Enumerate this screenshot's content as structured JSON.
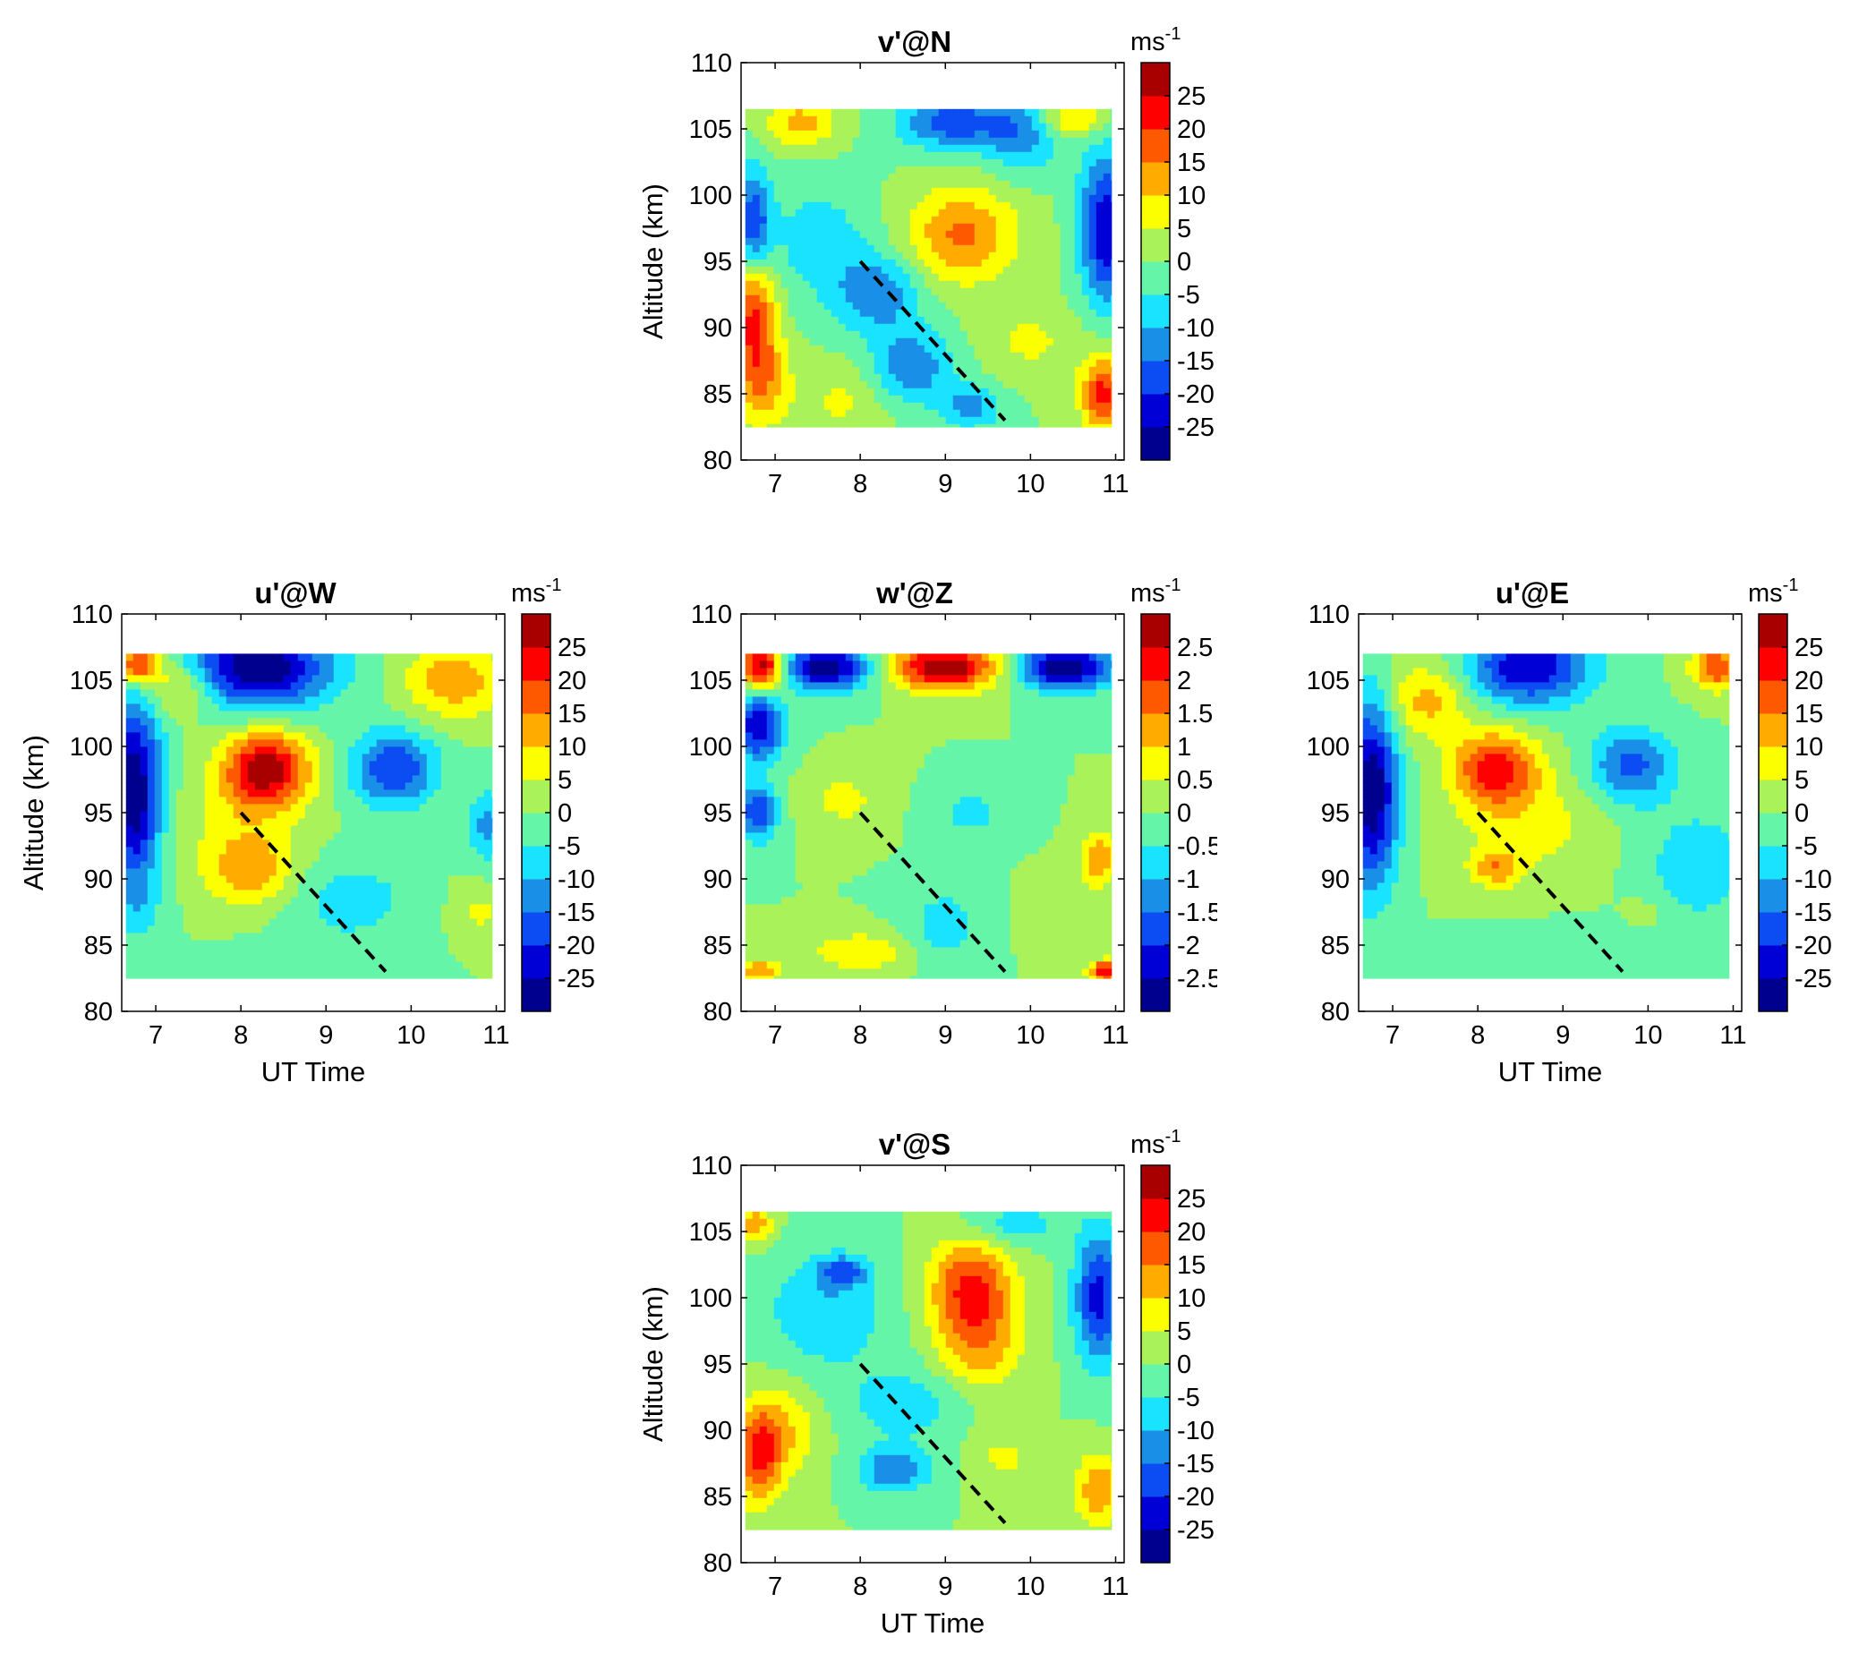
{
  "chart_data": [
    {
      "type": "heatmap",
      "id": "vN",
      "title": "v'@N",
      "xlabel": "",
      "ylabel": "Altitude (km)",
      "colorbar_unit": "ms",
      "colorbar_unit_exp": "-1",
      "xlim": [
        6.6,
        11.1
      ],
      "ylim": [
        80,
        110
      ],
      "xticks": [
        7,
        8,
        9,
        10,
        11
      ],
      "yticks": [
        80,
        85,
        90,
        95,
        100,
        105,
        110
      ],
      "data_x_range": [
        6.65,
        10.95
      ],
      "data_y_range": [
        82.5,
        106.5
      ],
      "colorbar_ticks": [
        "25",
        "20",
        "15",
        "10",
        "5",
        "0",
        "-5",
        "-10",
        "-15",
        "-20",
        "-25"
      ],
      "dashed_line": {
        "x": [
          8.0,
          9.7
        ],
        "y": [
          95,
          83
        ]
      },
      "features": [
        {
          "x": 6.75,
          "y": 97.5,
          "value": -22,
          "sx": 0.14,
          "sy": 3.0
        },
        {
          "x": 6.75,
          "y": 91.5,
          "value": 22,
          "sx": 0.18,
          "sy": 3.5
        },
        {
          "x": 6.85,
          "y": 86.0,
          "value": 12,
          "sx": 0.22,
          "sy": 2.5
        },
        {
          "x": 7.5,
          "y": 96.5,
          "value": -8,
          "sx": 0.45,
          "sy": 3.0
        },
        {
          "x": 7.3,
          "y": 105.5,
          "value": 12,
          "sx": 0.3,
          "sy": 1.3
        },
        {
          "x": 8.2,
          "y": 92.5,
          "value": -14,
          "sx": 0.35,
          "sy": 2.0
        },
        {
          "x": 8.6,
          "y": 87.0,
          "value": -14,
          "sx": 0.35,
          "sy": 2.0
        },
        {
          "x": 9.3,
          "y": 84.0,
          "value": -12,
          "sx": 0.25,
          "sy": 1.2
        },
        {
          "x": 9.1,
          "y": 105.5,
          "value": -18,
          "sx": 0.45,
          "sy": 1.5
        },
        {
          "x": 9.2,
          "y": 97.0,
          "value": 16,
          "sx": 0.45,
          "sy": 2.5
        },
        {
          "x": 9.9,
          "y": 104.5,
          "value": -12,
          "sx": 0.3,
          "sy": 2.0
        },
        {
          "x": 10.9,
          "y": 97.5,
          "value": -25,
          "sx": 0.22,
          "sy": 4.0
        },
        {
          "x": 10.5,
          "y": 105.8,
          "value": 12,
          "sx": 0.25,
          "sy": 1.0
        },
        {
          "x": 10.85,
          "y": 85.0,
          "value": 22,
          "sx": 0.18,
          "sy": 2.0
        },
        {
          "x": 10.0,
          "y": 89.0,
          "value": 6,
          "sx": 0.4,
          "sy": 2.0
        },
        {
          "x": 7.8,
          "y": 84.5,
          "value": 6,
          "sx": 0.4,
          "sy": 2.0
        }
      ]
    },
    {
      "type": "heatmap",
      "id": "uW",
      "title": "u'@W",
      "xlabel": "UT Time",
      "ylabel": "Altitude (km)",
      "colorbar_unit": "ms",
      "colorbar_unit_exp": "-1",
      "xlim": [
        6.6,
        11.1
      ],
      "ylim": [
        80,
        110
      ],
      "xticks": [
        7,
        8,
        9,
        10,
        11
      ],
      "yticks": [
        80,
        85,
        90,
        95,
        100,
        105,
        110
      ],
      "data_x_range": [
        6.65,
        10.95
      ],
      "data_y_range": [
        82.5,
        107
      ],
      "colorbar_ticks": [
        "25",
        "20",
        "15",
        "10",
        "5",
        "0",
        "-5",
        "-10",
        "-15",
        "-20",
        "-25"
      ],
      "dashed_line": {
        "x": [
          8.0,
          9.7
        ],
        "y": [
          95,
          83
        ]
      },
      "features": [
        {
          "x": 6.75,
          "y": 96.5,
          "value": -30,
          "sx": 0.22,
          "sy": 5.0
        },
        {
          "x": 6.8,
          "y": 106.2,
          "value": 25,
          "sx": 0.18,
          "sy": 1.0
        },
        {
          "x": 7.3,
          "y": 104.5,
          "value": 12,
          "sx": 0.3,
          "sy": 1.5
        },
        {
          "x": 8.2,
          "y": 106.0,
          "value": -30,
          "sx": 0.6,
          "sy": 2.2
        },
        {
          "x": 8.3,
          "y": 98.3,
          "value": 28,
          "sx": 0.35,
          "sy": 2.0
        },
        {
          "x": 8.0,
          "y": 94.0,
          "value": 6,
          "sx": 0.5,
          "sy": 3.0
        },
        {
          "x": 8.1,
          "y": 90.5,
          "value": 12,
          "sx": 0.35,
          "sy": 1.8
        },
        {
          "x": 9.8,
          "y": 98.3,
          "value": -20,
          "sx": 0.35,
          "sy": 2.0
        },
        {
          "x": 10.5,
          "y": 105.0,
          "value": 14,
          "sx": 0.4,
          "sy": 2.0
        },
        {
          "x": 10.9,
          "y": 94.0,
          "value": -12,
          "sx": 0.15,
          "sy": 2.0
        },
        {
          "x": 9.3,
          "y": 88.5,
          "value": -8,
          "sx": 0.5,
          "sy": 2.0
        },
        {
          "x": 10.8,
          "y": 87.5,
          "value": 6,
          "sx": 0.2,
          "sy": 1.5
        },
        {
          "x": 6.8,
          "y": 87.5,
          "value": -4,
          "sx": 0.2,
          "sy": 1.5
        },
        {
          "x": 9.0,
          "y": 84.0,
          "value": -3,
          "sx": 0.6,
          "sy": 1.5
        }
      ]
    },
    {
      "type": "heatmap",
      "id": "wZ",
      "title": "w'@Z",
      "xlabel": "",
      "ylabel": "",
      "colorbar_unit": "ms",
      "colorbar_unit_exp": "-1",
      "xlim": [
        6.6,
        11.1
      ],
      "ylim": [
        80,
        110
      ],
      "xticks": [
        7,
        8,
        9,
        10,
        11
      ],
      "yticks": [
        80,
        85,
        90,
        95,
        100,
        105,
        110
      ],
      "data_x_range": [
        6.65,
        10.95
      ],
      "data_y_range": [
        82.5,
        107
      ],
      "colorbar_ticks": [
        "2.5",
        "2",
        "1.5",
        "1",
        "0.5",
        "0",
        "-0.5",
        "-1",
        "-1.5",
        "-2",
        "-2.5"
      ],
      "dashed_line": {
        "x": [
          8.0,
          9.7
        ],
        "y": [
          95,
          83
        ]
      },
      "features": [
        {
          "x": 6.85,
          "y": 106.0,
          "value": 3,
          "sx": 0.18,
          "sy": 1.2
        },
        {
          "x": 7.6,
          "y": 106.0,
          "value": -3,
          "sx": 0.35,
          "sy": 1.2
        },
        {
          "x": 9.0,
          "y": 106.0,
          "value": 3,
          "sx": 0.45,
          "sy": 1.2
        },
        {
          "x": 10.4,
          "y": 106.0,
          "value": -3,
          "sx": 0.4,
          "sy": 1.2
        },
        {
          "x": 6.8,
          "y": 101.5,
          "value": -2.5,
          "sx": 0.2,
          "sy": 1.8
        },
        {
          "x": 6.8,
          "y": 95.0,
          "value": -2.0,
          "sx": 0.15,
          "sy": 1.5
        },
        {
          "x": 7.8,
          "y": 96.0,
          "value": 0.7,
          "sx": 0.3,
          "sy": 1.5
        },
        {
          "x": 9.3,
          "y": 95.0,
          "value": -0.7,
          "sx": 0.3,
          "sy": 1.2
        },
        {
          "x": 10.8,
          "y": 91.5,
          "value": 1.5,
          "sx": 0.15,
          "sy": 1.5
        },
        {
          "x": 9.0,
          "y": 86.5,
          "value": -0.8,
          "sx": 0.3,
          "sy": 2.0
        },
        {
          "x": 10.2,
          "y": 87.0,
          "value": 0.5,
          "sx": 0.2,
          "sy": 1.5
        },
        {
          "x": 8.0,
          "y": 84.5,
          "value": 1.0,
          "sx": 0.4,
          "sy": 1.0
        },
        {
          "x": 10.9,
          "y": 83.0,
          "value": 2.5,
          "sx": 0.15,
          "sy": 0.6
        },
        {
          "x": 6.8,
          "y": 83.0,
          "value": 1.5,
          "sx": 0.2,
          "sy": 0.6
        }
      ]
    },
    {
      "type": "heatmap",
      "id": "uE",
      "title": "u'@E",
      "xlabel": "UT Time",
      "ylabel": "",
      "colorbar_unit": "ms",
      "colorbar_unit_exp": "-1",
      "xlim": [
        6.6,
        11.1
      ],
      "ylim": [
        80,
        110
      ],
      "xticks": [
        7,
        8,
        9,
        10,
        11
      ],
      "yticks": [
        80,
        85,
        90,
        95,
        100,
        105,
        110
      ],
      "data_x_range": [
        6.65,
        10.95
      ],
      "data_y_range": [
        82.5,
        107
      ],
      "colorbar_ticks": [
        "25",
        "20",
        "15",
        "10",
        "5",
        "0",
        "-5",
        "-10",
        "-15",
        "-20",
        "-25"
      ],
      "dashed_line": {
        "x": [
          8.0,
          9.7
        ],
        "y": [
          95,
          83
        ]
      },
      "features": [
        {
          "x": 6.75,
          "y": 96.5,
          "value": -30,
          "sx": 0.22,
          "sy": 5.0
        },
        {
          "x": 7.4,
          "y": 103.5,
          "value": 12,
          "sx": 0.35,
          "sy": 2.0
        },
        {
          "x": 8.6,
          "y": 106.0,
          "value": -25,
          "sx": 0.5,
          "sy": 2.0
        },
        {
          "x": 8.2,
          "y": 98.3,
          "value": 22,
          "sx": 0.35,
          "sy": 2.0
        },
        {
          "x": 8.6,
          "y": 94.0,
          "value": 7,
          "sx": 0.6,
          "sy": 3.0
        },
        {
          "x": 8.2,
          "y": 90.8,
          "value": 12,
          "sx": 0.2,
          "sy": 1.0
        },
        {
          "x": 9.8,
          "y": 98.5,
          "value": -17,
          "sx": 0.35,
          "sy": 2.0
        },
        {
          "x": 10.8,
          "y": 106.0,
          "value": 20,
          "sx": 0.2,
          "sy": 1.2
        },
        {
          "x": 10.6,
          "y": 91.0,
          "value": -9,
          "sx": 0.45,
          "sy": 3.0
        },
        {
          "x": 10.0,
          "y": 87.5,
          "value": 3,
          "sx": 0.2,
          "sy": 1.0
        },
        {
          "x": 9.0,
          "y": 84.5,
          "value": -3,
          "sx": 0.7,
          "sy": 1.5
        }
      ]
    },
    {
      "type": "heatmap",
      "id": "vS",
      "title": "v'@S",
      "xlabel": "UT Time",
      "ylabel": "Altitude (km)",
      "colorbar_unit": "ms",
      "colorbar_unit_exp": "-1",
      "xlim": [
        6.6,
        11.1
      ],
      "ylim": [
        80,
        110
      ],
      "xticks": [
        7,
        8,
        9,
        10,
        11
      ],
      "yticks": [
        80,
        85,
        90,
        95,
        100,
        105,
        110
      ],
      "data_x_range": [
        6.65,
        10.95
      ],
      "data_y_range": [
        82.5,
        106.5
      ],
      "colorbar_ticks": [
        "25",
        "20",
        "15",
        "10",
        "5",
        "0",
        "-5",
        "-10",
        "-15",
        "-20",
        "-25"
      ],
      "dashed_line": {
        "x": [
          8.0,
          9.7
        ],
        "y": [
          95,
          83
        ]
      },
      "features": [
        {
          "x": 6.75,
          "y": 105.5,
          "value": 14,
          "sx": 0.15,
          "sy": 1.0
        },
        {
          "x": 7.6,
          "y": 99.0,
          "value": -10,
          "sx": 0.5,
          "sy": 3.0
        },
        {
          "x": 7.8,
          "y": 102.0,
          "value": -14,
          "sx": 0.2,
          "sy": 0.8
        },
        {
          "x": 8.5,
          "y": 92.0,
          "value": -8,
          "sx": 0.5,
          "sy": 2.0
        },
        {
          "x": 6.8,
          "y": 88.0,
          "value": 20,
          "sx": 0.18,
          "sy": 2.5
        },
        {
          "x": 7.1,
          "y": 90.0,
          "value": 10,
          "sx": 0.3,
          "sy": 2.5
        },
        {
          "x": 8.4,
          "y": 87.0,
          "value": -15,
          "sx": 0.3,
          "sy": 1.2
        },
        {
          "x": 9.3,
          "y": 101.0,
          "value": 20,
          "sx": 0.35,
          "sy": 2.5
        },
        {
          "x": 9.4,
          "y": 96.5,
          "value": 13,
          "sx": 0.35,
          "sy": 2.5
        },
        {
          "x": 9.8,
          "y": 105.5,
          "value": -8,
          "sx": 0.4,
          "sy": 1.2
        },
        {
          "x": 10.8,
          "y": 100.0,
          "value": -22,
          "sx": 0.2,
          "sy": 3.5
        },
        {
          "x": 10.8,
          "y": 85.5,
          "value": 14,
          "sx": 0.2,
          "sy": 2.0
        },
        {
          "x": 9.7,
          "y": 88.0,
          "value": 6,
          "sx": 0.3,
          "sy": 1.5
        }
      ]
    }
  ]
}
